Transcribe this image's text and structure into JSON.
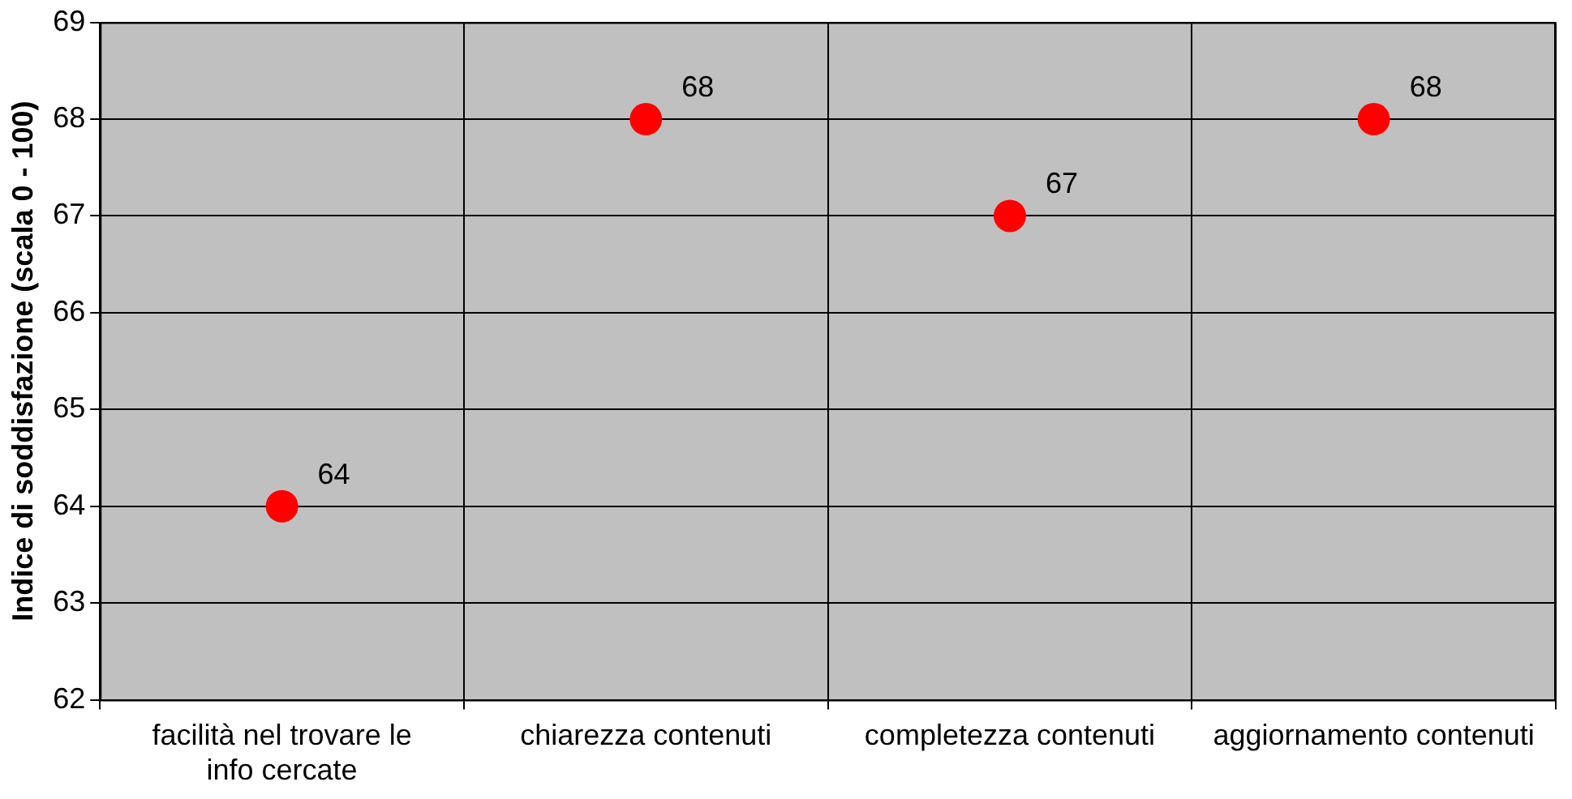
{
  "chart_data": {
    "type": "scatter",
    "ylabel": "Indice di soddisfazione (scala 0 - 100)",
    "categories": [
      "facilità nel trovare le info cercate",
      "chiarezza contenuti",
      "completezza contenuti",
      "aggiornamento contenuti"
    ],
    "values": [
      64,
      68,
      67,
      68
    ],
    "color": "#ff0000",
    "marker": "circle",
    "data_labels": true,
    "ylim": [
      62,
      69
    ],
    "yticks": [
      62,
      63,
      64,
      65,
      66,
      67,
      68,
      69
    ],
    "grid": true,
    "legend": false
  }
}
